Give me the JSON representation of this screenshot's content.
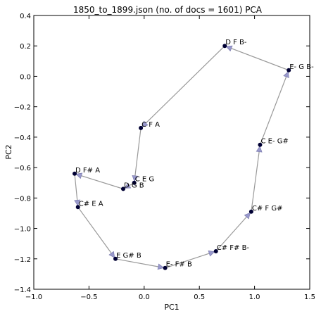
{
  "chart_data": {
    "type": "scatter",
    "title": "1850_to_1899.json (no. of docs = 1601) PCA",
    "xlabel": "PC1",
    "ylabel": "PC2",
    "xlim": [
      -1.0,
      1.5
    ],
    "ylim": [
      -1.4,
      0.4
    ],
    "xticks": [
      "−1.0",
      "−0.5",
      "0.0",
      "0.5",
      "1.0",
      "1.5"
    ],
    "yticks": [
      "0.4",
      "0.2",
      "0.0",
      "−0.2",
      "−0.4",
      "−0.6",
      "−0.8",
      "−1.0",
      "−1.2",
      "−1.4"
    ],
    "grid": false,
    "points": [
      {
        "label": "C E G",
        "x": -0.09,
        "y": -0.7
      },
      {
        "label": "D G B",
        "x": -0.19,
        "y": -0.74
      },
      {
        "label": "D F# A",
        "x": -0.63,
        "y": -0.64
      },
      {
        "label": "C# E A",
        "x": -0.6,
        "y": -0.86
      },
      {
        "label": "E G# B",
        "x": -0.26,
        "y": -1.2
      },
      {
        "label": "E- F# B",
        "x": 0.19,
        "y": -1.26
      },
      {
        "label": "C# F# B-",
        "x": 0.65,
        "y": -1.15
      },
      {
        "label": "C# F G#",
        "x": 0.97,
        "y": -0.89
      },
      {
        "label": "C E- G#",
        "x": 1.05,
        "y": -0.45
      },
      {
        "label": "E- G B-",
        "x": 1.31,
        "y": 0.04
      },
      {
        "label": "D F B-",
        "x": 0.73,
        "y": 0.2
      },
      {
        "label": "C F A",
        "x": -0.03,
        "y": -0.34
      }
    ],
    "path_order": [
      "C E G",
      "D G B",
      "D F# A",
      "C# E A",
      "E G# B",
      "E- F# B",
      "C# F# B-",
      "C# F G#",
      "C E- G#",
      "E- G B-",
      "D F B-",
      "C F A",
      "C E G"
    ],
    "colors": {
      "point": "#000033",
      "line": "#999999",
      "arrow": "#9999cc"
    }
  }
}
